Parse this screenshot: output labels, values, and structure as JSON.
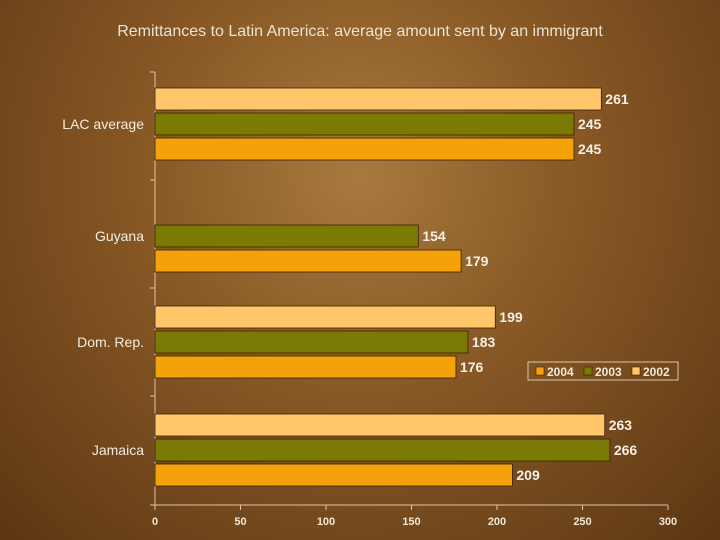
{
  "chart_data": {
    "type": "bar",
    "orientation": "horizontal",
    "title": "Remittances to Latin America: average amount sent by an immigrant",
    "xlabel": "",
    "ylabel": "",
    "categories": [
      "LAC average",
      "Guyana",
      "Dom. Rep.",
      "Jamaica"
    ],
    "series": [
      {
        "name": "2002",
        "color": "#ffc76a",
        "values": [
          261,
          null,
          199,
          263
        ]
      },
      {
        "name": "2003",
        "color": "#7a7a05",
        "values": [
          245,
          154,
          183,
          266
        ]
      },
      {
        "name": "2004",
        "color": "#f5a20a",
        "values": [
          245,
          179,
          176,
          209
        ]
      }
    ],
    "xlim": [
      0,
      300
    ],
    "xticks": [
      0,
      50,
      100,
      150,
      200,
      250,
      300
    ],
    "grid": false,
    "legend": {
      "placement": "right",
      "order": [
        "2004",
        "2003",
        "2002"
      ]
    }
  }
}
